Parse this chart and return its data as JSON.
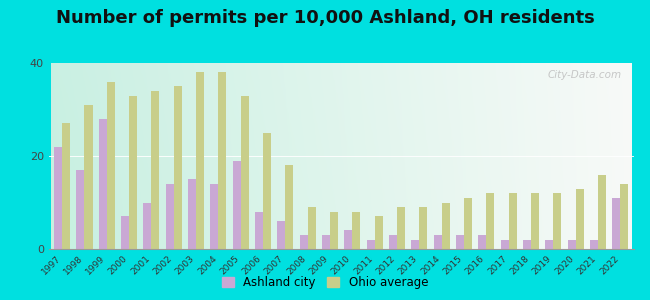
{
  "title": "Number of permits per 10,000 Ashland, OH residents",
  "years": [
    1997,
    1998,
    1999,
    2000,
    2001,
    2002,
    2003,
    2004,
    2005,
    2006,
    2007,
    2008,
    2009,
    2010,
    2011,
    2012,
    2013,
    2014,
    2015,
    2016,
    2017,
    2018,
    2019,
    2020,
    2021,
    2022
  ],
  "ashland_city": [
    22,
    17,
    28,
    7,
    10,
    14,
    15,
    14,
    19,
    8,
    6,
    3,
    3,
    4,
    2,
    3,
    2,
    3,
    3,
    3,
    2,
    2,
    2,
    2,
    2,
    11
  ],
  "ohio_avg": [
    27,
    31,
    36,
    33,
    34,
    35,
    38,
    38,
    33,
    25,
    18,
    9,
    8,
    8,
    7,
    9,
    9,
    10,
    11,
    12,
    12,
    12,
    12,
    13,
    16,
    14
  ],
  "ashland_color": "#c9a8d4",
  "ohio_color": "#c8ce8a",
  "outer_bg": "#00e0e0",
  "ylim": [
    0,
    40
  ],
  "yticks": [
    0,
    20,
    40
  ],
  "title_fontsize": 13,
  "legend_ashland": "Ashland city",
  "legend_ohio": "Ohio average"
}
